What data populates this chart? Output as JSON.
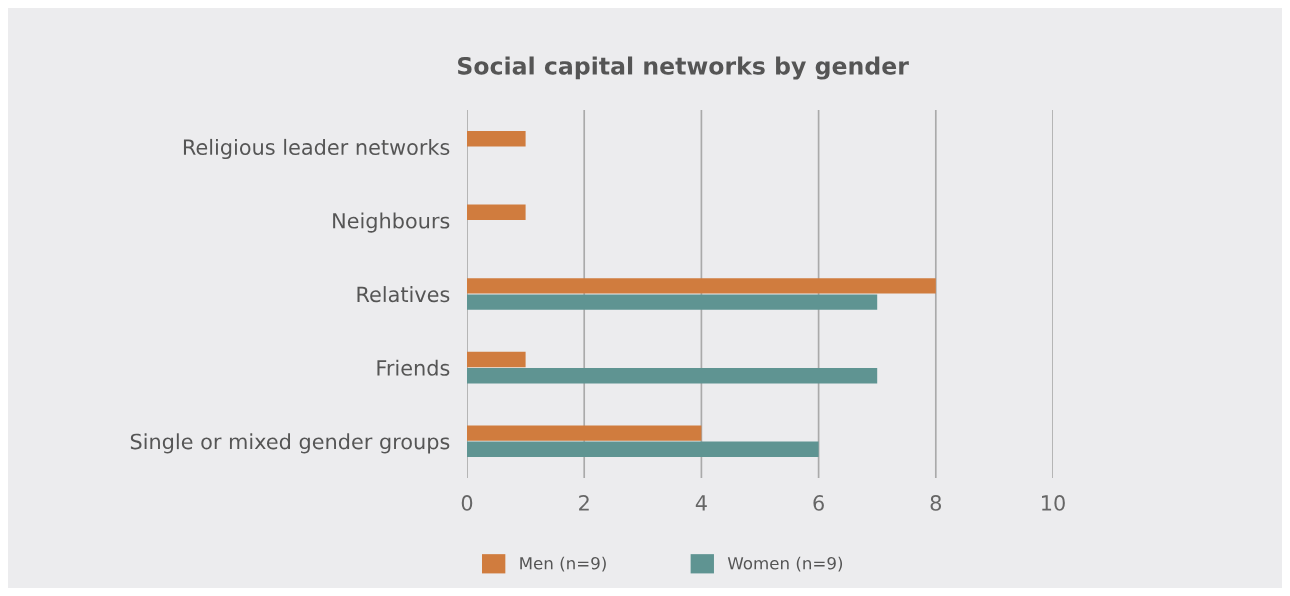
{
  "chart_data": {
    "type": "bar",
    "orientation": "horizontal",
    "title": "Social capital networks by gender",
    "categories": [
      "Religious leader networks",
      "Neighbours",
      "Relatives",
      "Friends",
      "Single or mixed gender groups"
    ],
    "series": [
      {
        "name": "Men (n=9)",
        "color": "#d07c3e",
        "values": [
          1,
          1,
          8,
          1,
          4
        ]
      },
      {
        "name": "Women (n=9)",
        "color": "#5f9492",
        "values": [
          null,
          null,
          7,
          7,
          6
        ]
      }
    ],
    "xlim": [
      0,
      10
    ],
    "xticks": [
      0,
      2,
      4,
      6,
      8,
      10
    ],
    "grid": "x",
    "legend": "bottom"
  }
}
